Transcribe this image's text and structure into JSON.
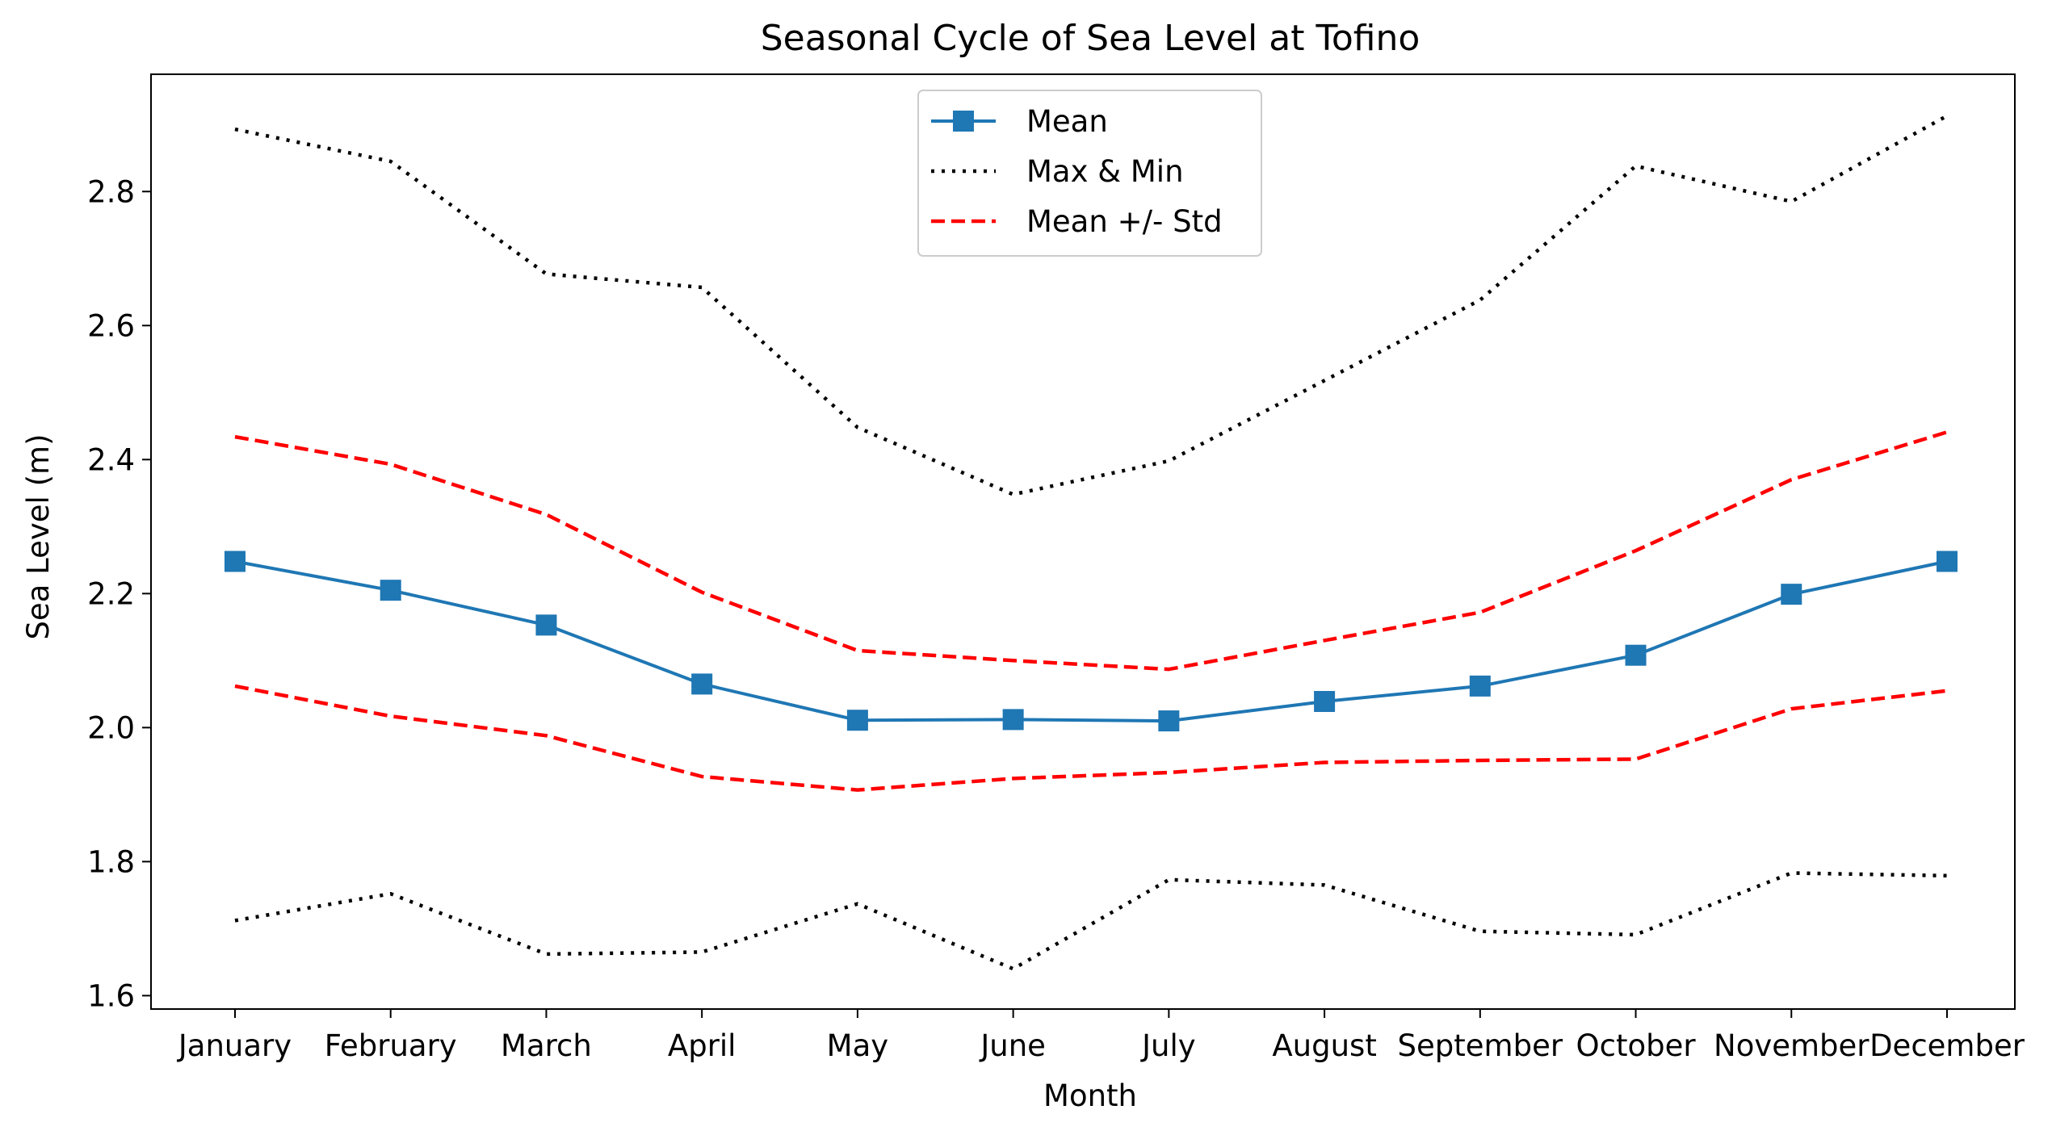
{
  "chart_data": {
    "type": "line",
    "title": "Seasonal Cycle of Sea Level at Tofino",
    "xlabel": "Month",
    "ylabel": "Sea Level (m)",
    "categories": [
      "January",
      "February",
      "March",
      "April",
      "May",
      "June",
      "July",
      "August",
      "September",
      "October",
      "November",
      "December"
    ],
    "ylim": [
      1.58,
      2.975
    ],
    "yticks": [
      1.6,
      1.8,
      2.0,
      2.2,
      2.4,
      2.6,
      2.8
    ],
    "ytick_labels": [
      "1.6",
      "1.8",
      "2.0",
      "2.2",
      "2.4",
      "2.6",
      "2.8"
    ],
    "grid": false,
    "legend_position": "top-center",
    "series": [
      {
        "name": "Mean",
        "color": "#1f77b4",
        "style": "solid",
        "marker": "square",
        "values": [
          2.248,
          2.205,
          2.153,
          2.065,
          2.011,
          2.012,
          2.01,
          2.039,
          2.062,
          2.108,
          2.199,
          2.248
        ]
      },
      {
        "name": "Max & Min",
        "color": "#000000",
        "style": "dotted",
        "marker": "none",
        "values": [
          2.893,
          2.845,
          2.677,
          2.657,
          2.448,
          2.348,
          2.398,
          2.518,
          2.638,
          2.838,
          2.785,
          2.913
        ]
      },
      {
        "name": "",
        "color": "#000000",
        "style": "dotted",
        "marker": "none",
        "values": [
          1.712,
          1.752,
          1.662,
          1.665,
          1.737,
          1.64,
          1.773,
          1.765,
          1.696,
          1.691,
          1.783,
          1.779
        ]
      },
      {
        "name": "Mean +/- Std",
        "color": "#ff0000",
        "style": "dashed",
        "marker": "none",
        "values": [
          2.434,
          2.393,
          2.318,
          2.202,
          2.115,
          2.1,
          2.087,
          2.13,
          2.172,
          2.264,
          2.37,
          2.441
        ]
      },
      {
        "name": "",
        "color": "#ff0000",
        "style": "dashed",
        "marker": "none",
        "values": [
          2.062,
          2.017,
          1.988,
          1.927,
          1.907,
          1.924,
          1.933,
          1.948,
          1.951,
          1.953,
          2.028,
          2.055
        ]
      }
    ],
    "legend": [
      {
        "label": "Mean",
        "color": "#1f77b4",
        "style": "solid",
        "marker": "square"
      },
      {
        "label": "Max & Min",
        "color": "#000000",
        "style": "dotted",
        "marker": "none"
      },
      {
        "label": "Mean +/- Std",
        "color": "#ff0000",
        "style": "dashed",
        "marker": "none"
      }
    ]
  }
}
